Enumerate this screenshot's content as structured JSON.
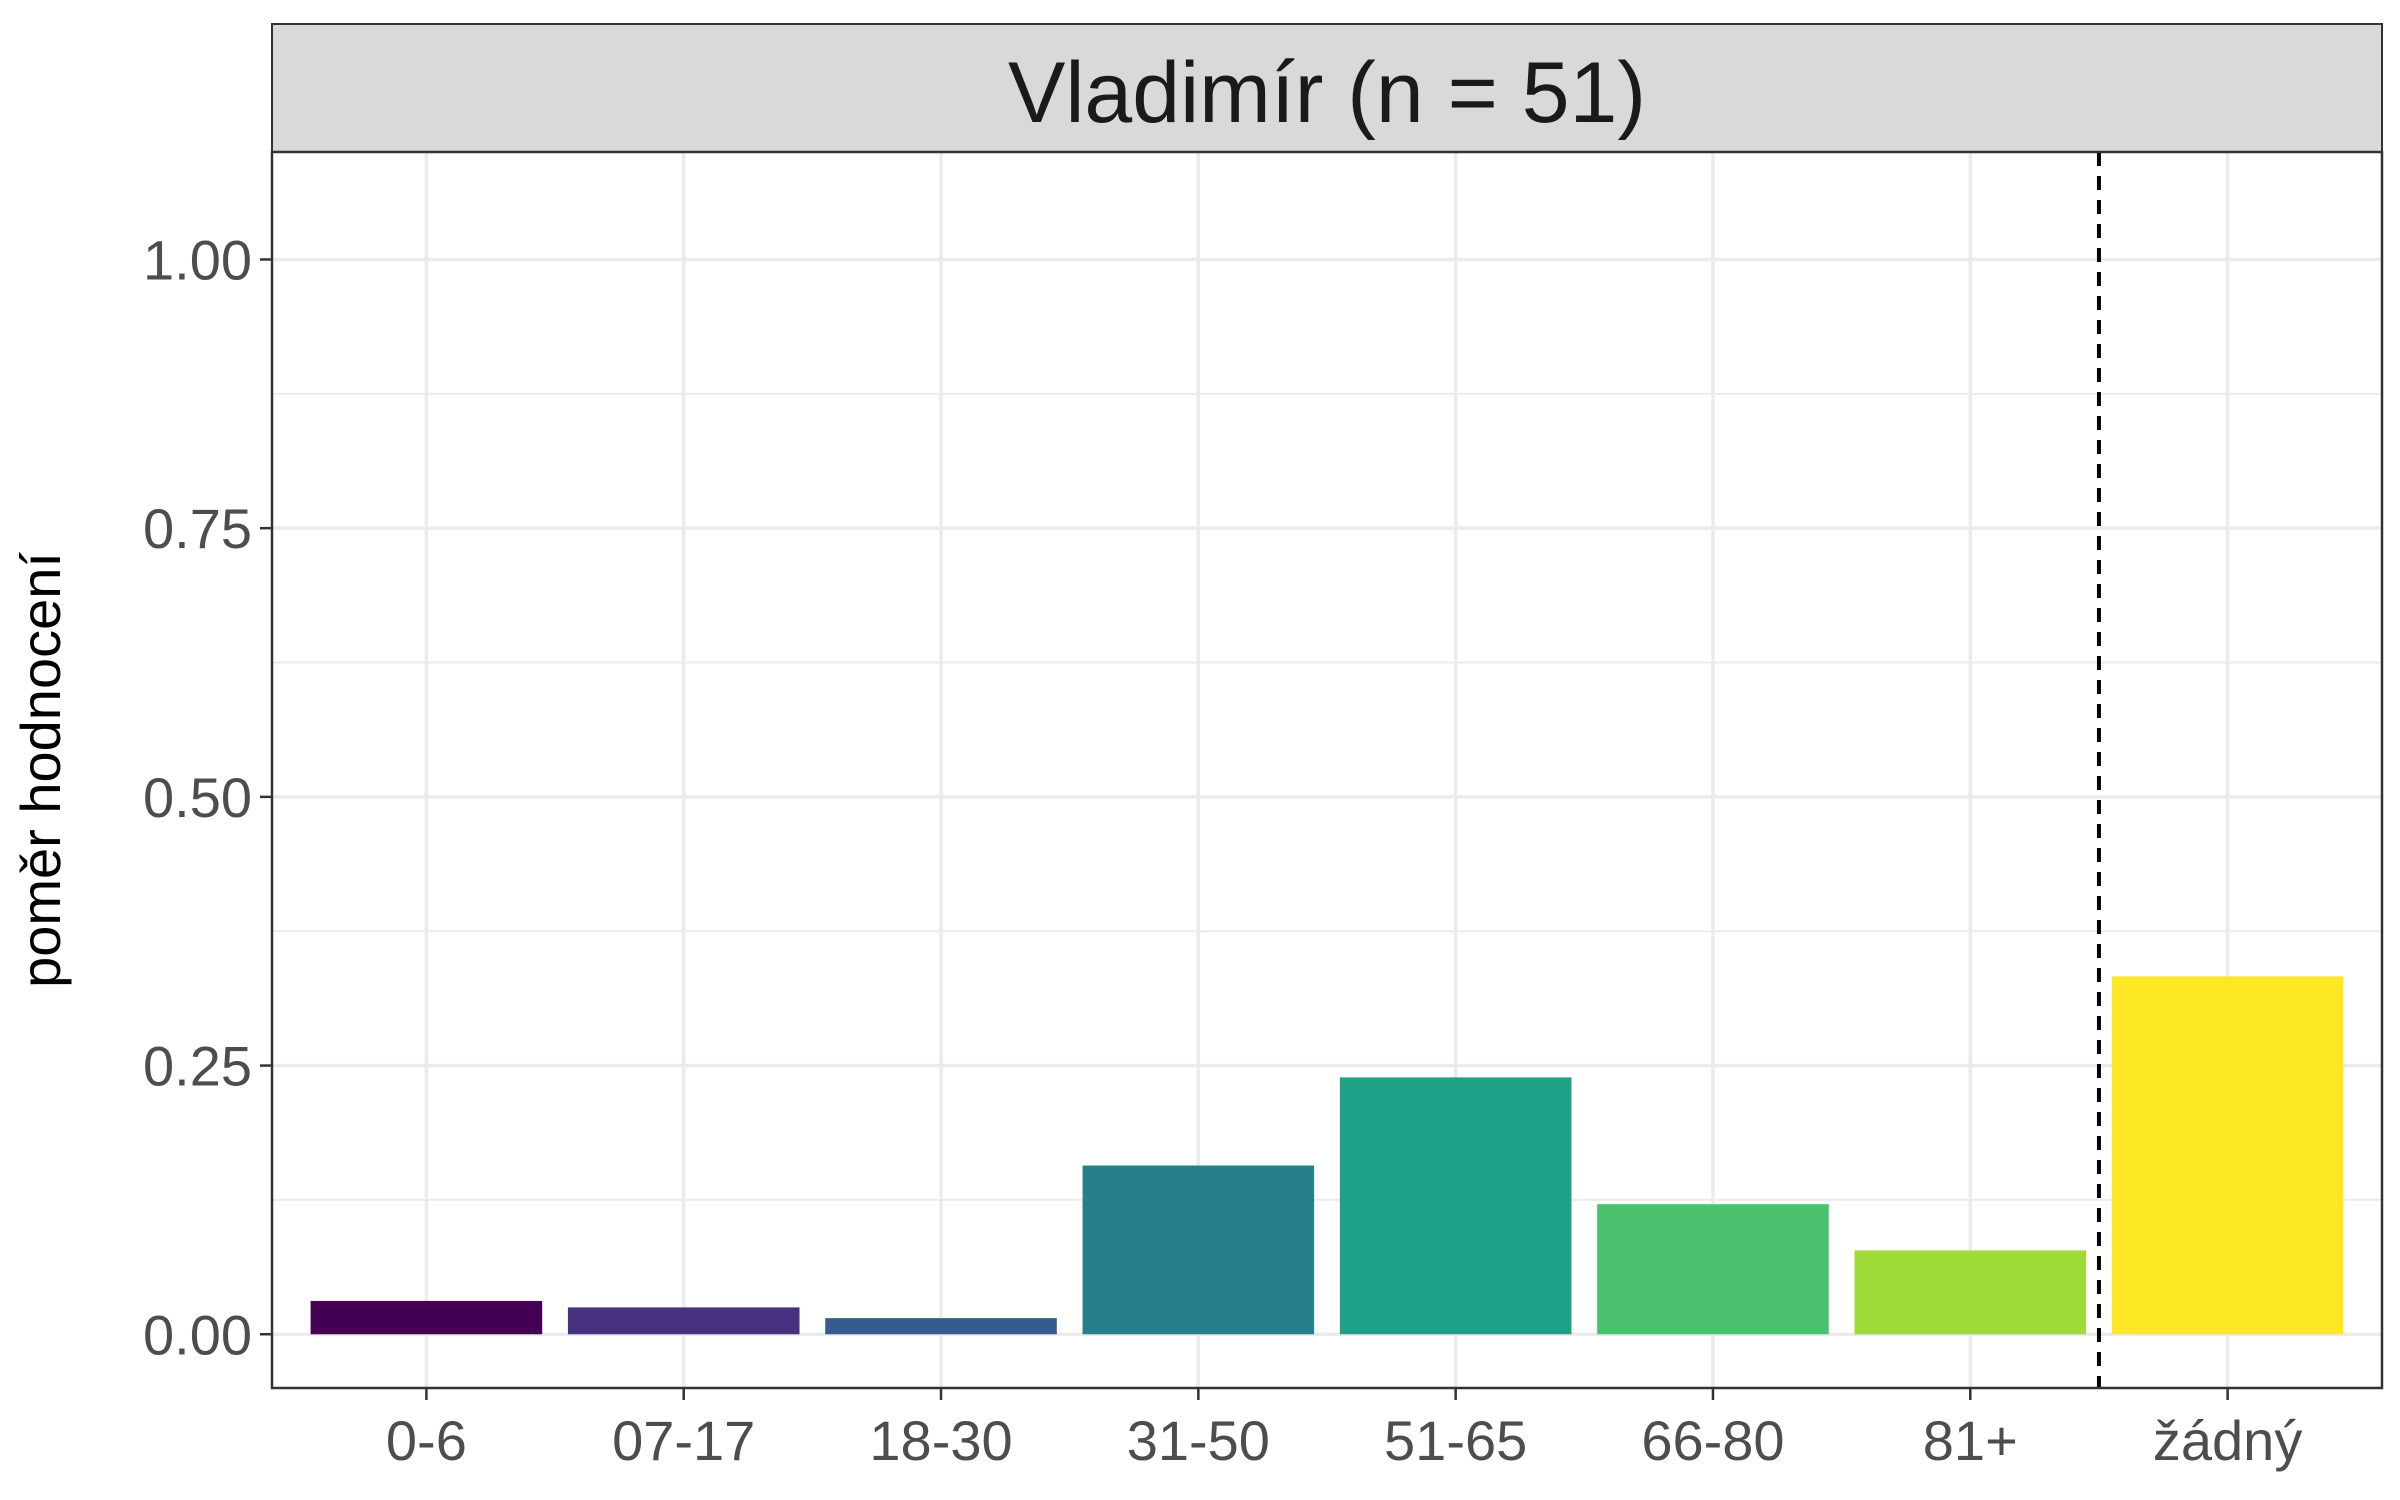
{
  "chart_data": {
    "type": "bar",
    "title": "Vladimír (n = 51)",
    "xlabel": "",
    "ylabel": "poměr hodnocení",
    "categories": [
      "0-6",
      "07-17",
      "18-30",
      "31-50",
      "51-65",
      "66-80",
      "81+",
      "žádný"
    ],
    "values": [
      0.031,
      0.025,
      0.015,
      0.157,
      0.239,
      0.121,
      0.078,
      0.333
    ],
    "colors": [
      "#440154",
      "#46327E",
      "#365C8D",
      "#277F8E",
      "#1FA187",
      "#4AC16D",
      "#A0DA39",
      "#FDE725"
    ],
    "ylim": [
      -0.05,
      1.1
    ],
    "yticks": [
      0,
      0.25,
      0.5,
      0.75,
      1.0
    ],
    "ytick_labels": [
      "0.00",
      "0.25",
      "0.50",
      "0.75",
      "1.00"
    ],
    "grid": true,
    "separator_after_category": "81+",
    "legend": "none"
  }
}
